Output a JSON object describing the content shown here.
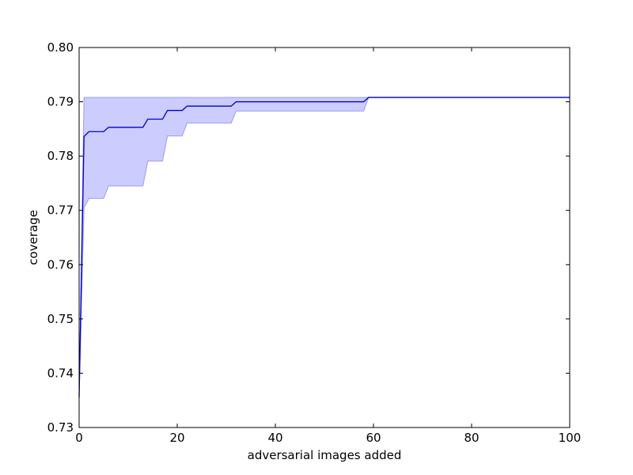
{
  "chart_data": {
    "type": "line",
    "title": "",
    "xlabel": "adversarial images added",
    "ylabel": "coverage",
    "xlim": [
      0,
      100
    ],
    "ylim": [
      0.73,
      0.8
    ],
    "xticks": [
      0,
      20,
      40,
      60,
      80,
      100
    ],
    "xtick_labels": [
      "0",
      "20",
      "40",
      "60",
      "80",
      "100"
    ],
    "yticks": [
      0.73,
      0.74,
      0.75,
      0.76,
      0.77,
      0.78,
      0.79,
      0.8
    ],
    "ytick_labels": [
      "0.73",
      "0.74",
      "0.75",
      "0.76",
      "0.77",
      "0.78",
      "0.79",
      "0.80"
    ],
    "grid": false,
    "legend": "none",
    "colors": {
      "line": "#0000cc",
      "band_fill": "#ccccff",
      "band_edge": "#9999ff"
    },
    "series": [
      {
        "values_kind": "mean",
        "x": [
          0,
          1,
          2,
          5,
          6,
          13,
          14,
          17,
          18,
          21,
          22,
          31,
          32,
          58,
          59,
          100
        ],
        "y": [
          0.7355,
          0.7836,
          0.7845,
          0.7845,
          0.7853,
          0.7853,
          0.7868,
          0.7868,
          0.7884,
          0.7884,
          0.7892,
          0.7892,
          0.79,
          0.79,
          0.7908,
          0.7908
        ]
      }
    ],
    "band": {
      "x": [
        0,
        1,
        2,
        5,
        6,
        13,
        14,
        17,
        18,
        21,
        22,
        31,
        32,
        58,
        59,
        100
      ],
      "lower": [
        0.7355,
        0.7705,
        0.7722,
        0.7722,
        0.7745,
        0.7745,
        0.7791,
        0.7791,
        0.7837,
        0.7837,
        0.7861,
        0.7861,
        0.7883,
        0.7883,
        0.7908,
        0.7908
      ],
      "upper": [
        0.7355,
        0.7908,
        0.7908,
        0.7908,
        0.7908,
        0.7908,
        0.7908,
        0.7908,
        0.7908,
        0.7908,
        0.7908,
        0.7908,
        0.7908,
        0.7908,
        0.7908,
        0.7908
      ]
    }
  }
}
